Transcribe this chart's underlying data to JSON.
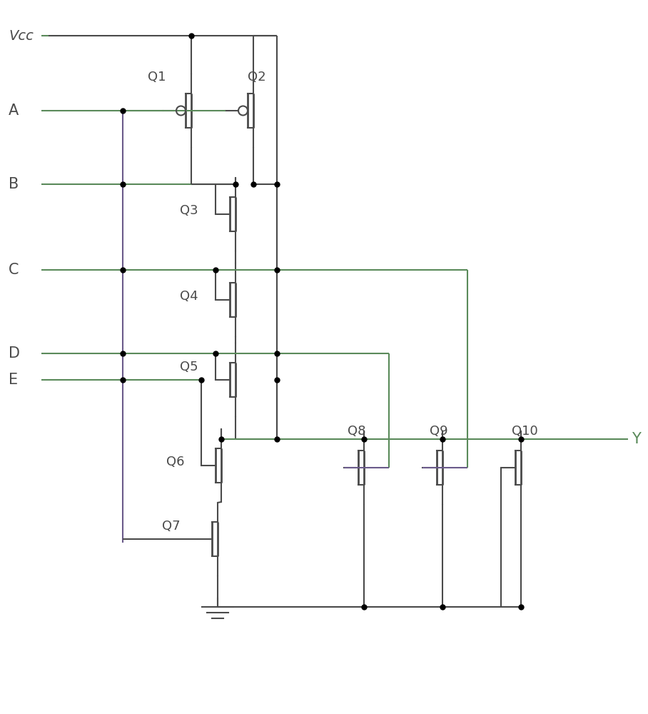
{
  "bg_color": "#ffffff",
  "line_color": "#4a4a4a",
  "green_color": "#5a8a5a",
  "purple_color": "#6a5a8a",
  "figsize": [
    9.08,
    10.0
  ],
  "dpi": 100,
  "transistor_labels": [
    "Q1",
    "Q2",
    "Q3",
    "Q4",
    "Q5",
    "Q6",
    "Q7",
    "Q8",
    "Q9",
    "Q10"
  ],
  "input_labels": [
    "A",
    "B",
    "C",
    "D",
    "E"
  ],
  "output_label": "Y",
  "vcc_label": "Vcc"
}
